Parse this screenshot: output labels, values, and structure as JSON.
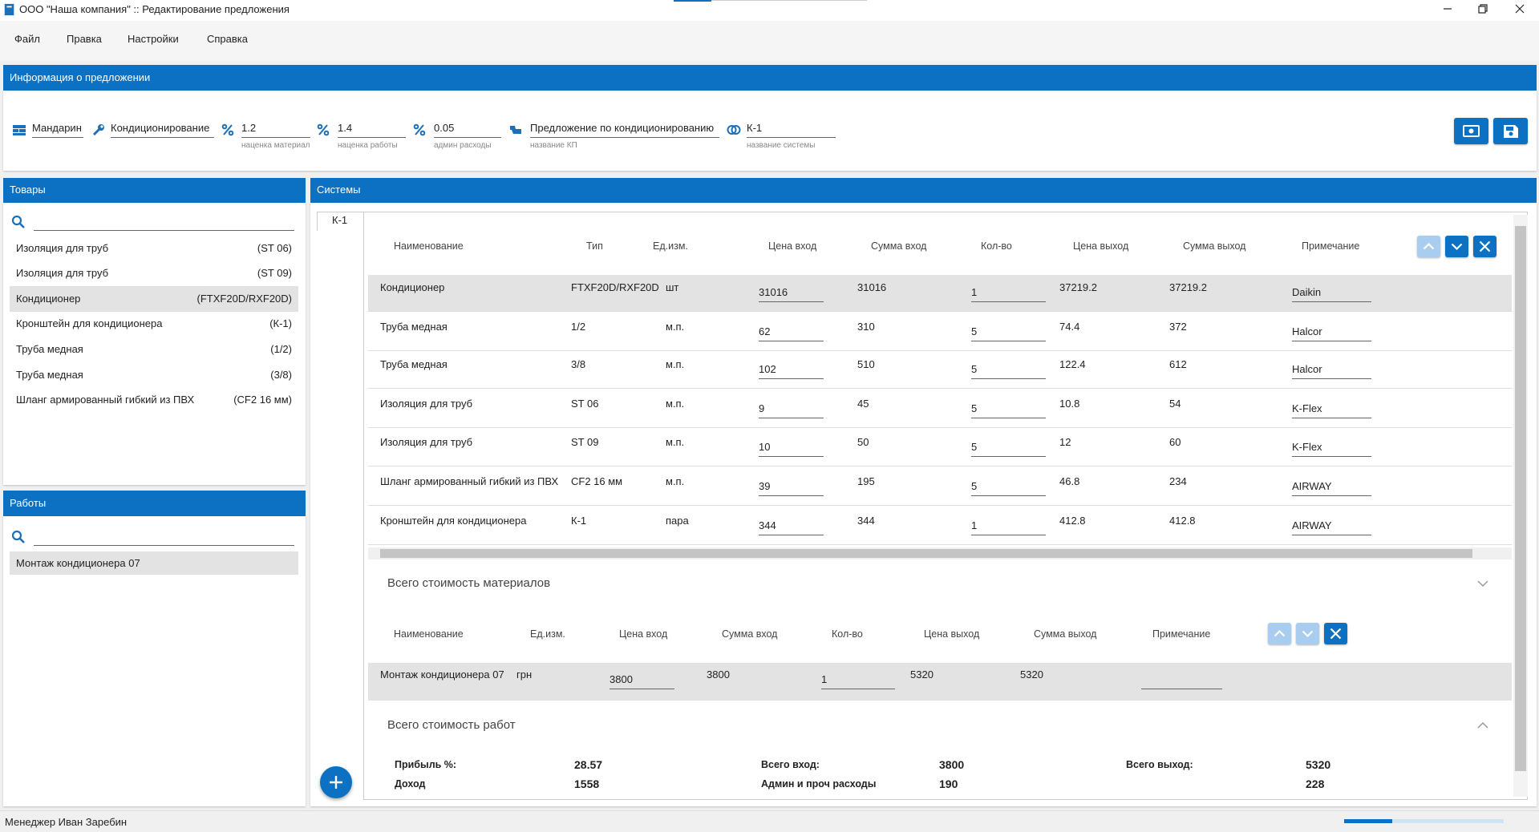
{
  "window": {
    "title": "ООО \"Наша компания\" :: Редактирование предложения"
  },
  "menu": [
    "Файл",
    "Правка",
    "Настройки",
    "Справка"
  ],
  "info": {
    "title": "Информация о предложении",
    "fields": [
      {
        "value": "Мандарин"
      },
      {
        "value": "Кондиционирование"
      },
      {
        "value": 1.2,
        "label": "наценка материал"
      },
      {
        "value": 1.4,
        "label": "наценка работы"
      },
      {
        "value": 0.05,
        "label": "админ расходы"
      },
      {
        "value": "Предложение по кондиционированию",
        "label": "название КП"
      },
      {
        "value": "К-1",
        "label": "название системы"
      }
    ]
  },
  "goods": {
    "title": "Товары",
    "items": [
      {
        "name": "Изоляция для труб",
        "code": "(ST 06)"
      },
      {
        "name": "Изоляция для труб",
        "code": "(ST 09)"
      },
      {
        "name": "Кондиционер",
        "code": "(FTXF20D/RXF20D)"
      },
      {
        "name": "Кронштейн для кондиционера",
        "code": "(К-1)"
      },
      {
        "name": "Труба медная",
        "code": "(1/2)"
      },
      {
        "name": "Труба медная",
        "code": "(3/8)"
      },
      {
        "name": "Шланг армированный гибкий из ПВХ",
        "code": "(CF2 16 мм)"
      }
    ]
  },
  "works": {
    "title": "Работы",
    "items": [
      {
        "name": "Монтаж кондиционера 07"
      }
    ]
  },
  "systems": {
    "title": "Системы",
    "tab": "К-1",
    "materials": {
      "columns": [
        "Наименование",
        "Тип",
        "Ед.изм.",
        "Цена вход",
        "Сумма вход",
        "Кол-во",
        "Цена выход",
        "Сумма выход",
        "Примечание"
      ],
      "rows": [
        [
          "Кондиционер",
          "FTXF20D/RXF20D",
          "шт",
          31016,
          31016,
          1,
          37219.2,
          37219.2,
          "Daikin"
        ],
        [
          "Труба медная",
          "1/2",
          "м.п.",
          62,
          310,
          5,
          74.4,
          372,
          "Halcor"
        ],
        [
          "Труба медная",
          "3/8",
          "м.п.",
          102,
          510,
          5,
          122.4,
          612,
          "Halcor"
        ],
        [
          "Изоляция для труб",
          "ST 06",
          "м.п.",
          9,
          45,
          5,
          10.8,
          54,
          "K-Flex"
        ],
        [
          "Изоляция для труб",
          "ST 09",
          "м.п.",
          10,
          50,
          5,
          12,
          60,
          "K-Flex"
        ],
        [
          "Шланг армированный гибкий из ПВХ",
          "CF2 16 мм",
          "м.п.",
          39,
          195,
          5,
          46.8,
          234,
          "AIRWAY"
        ],
        [
          "Кронштейн для кондиционера",
          "К-1",
          "пара",
          344,
          344,
          1,
          412.8,
          412.8,
          "AIRWAY"
        ]
      ],
      "total": "Всего стоимость материалов"
    },
    "works": {
      "columns": [
        "Наименование",
        "Ед.изм.",
        "Цена вход",
        "Сумма вход",
        "Кол-во",
        "Цена выход",
        "Сумма выход",
        "Примечание"
      ],
      "rows": [
        [
          "Монтаж кондиционера 07",
          "грн",
          3800,
          3800,
          1,
          5320,
          5320
        ]
      ],
      "total": "Всего стоимость работ"
    },
    "summary": [
      {
        "label": "Прибыль %:",
        "value": 28.57
      },
      {
        "label": "Всего вход:",
        "value": 3800
      },
      {
        "label": "Всего выход:",
        "value": 5320
      },
      {
        "label": "Доход",
        "value": 1558
      },
      {
        "label": "Админ и проч расходы",
        "value": 190
      },
      {
        "value": 228
      }
    ]
  },
  "status": {
    "manager": "Менеджер Иван Заребин"
  }
}
